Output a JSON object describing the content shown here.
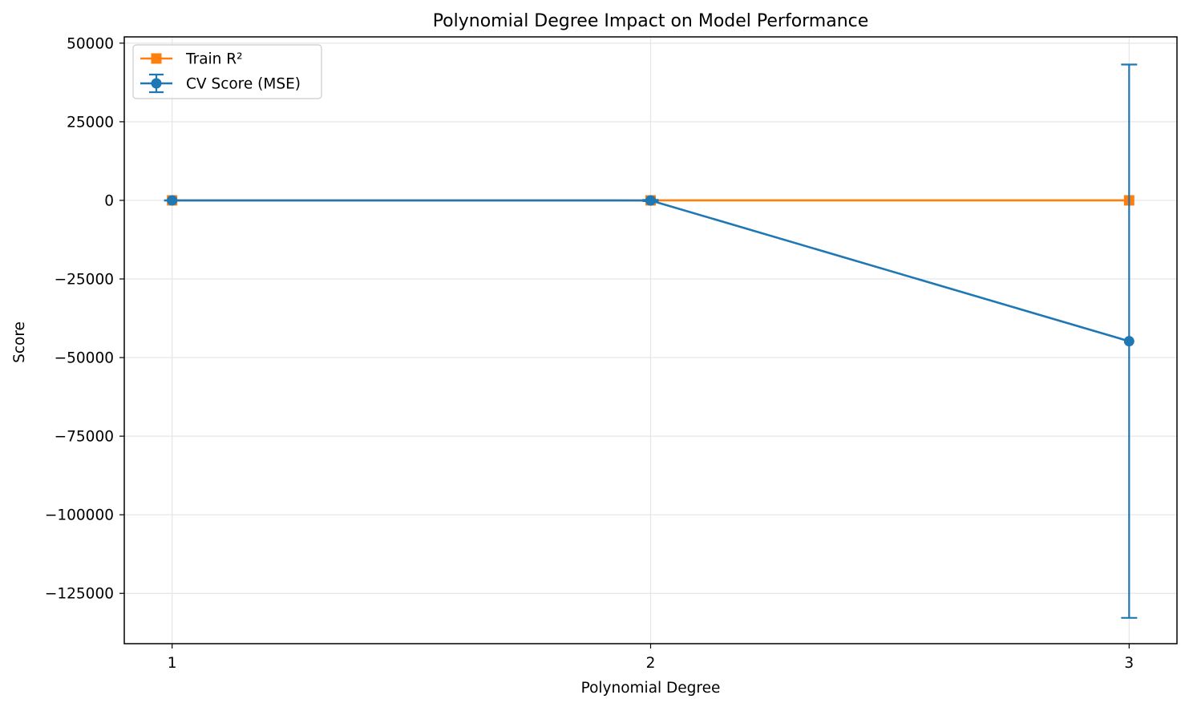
{
  "chart_data": {
    "type": "line",
    "title": "Polynomial Degree Impact on Model Performance",
    "xlabel": "Polynomial Degree",
    "ylabel": "Score",
    "x": [
      1,
      2,
      3
    ],
    "x_tick_labels": [
      "1",
      "2",
      "3"
    ],
    "xlim": [
      0.9,
      3.1
    ],
    "ylim": [
      -141000,
      52000
    ],
    "y_ticks": [
      50000,
      25000,
      0,
      -25000,
      -50000,
      -75000,
      -100000,
      -125000
    ],
    "y_tick_labels": [
      "50000",
      "25000",
      "0",
      "−25000",
      "−50000",
      "−75000",
      "−100000",
      "−125000"
    ],
    "grid": true,
    "legend_position": "upper-left",
    "series": [
      {
        "name": "Train R²",
        "marker": "square",
        "color": "#ff7f0e",
        "values": [
          0.97,
          0.99,
          1.0
        ]
      },
      {
        "name": "CV Score (MSE)",
        "marker": "circle",
        "color": "#1f77b4",
        "values": [
          -15,
          -40,
          -44800
        ],
        "errors": [
          50,
          200,
          88000
        ]
      }
    ]
  }
}
